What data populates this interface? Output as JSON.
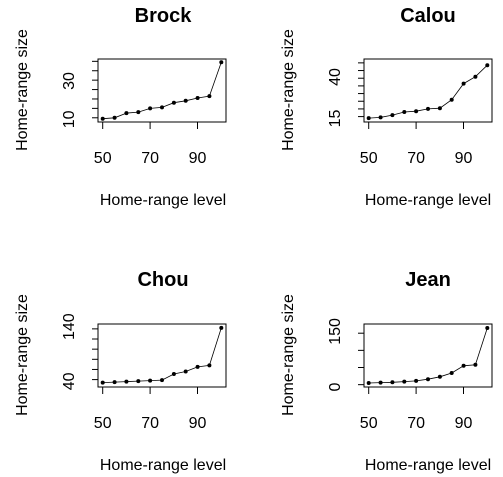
{
  "chart_data": [
    {
      "type": "line",
      "title": "Brock",
      "xlabel": "Home-range level",
      "ylabel": "Home-range size",
      "xlim": [
        50,
        100
      ],
      "ylim": [
        9,
        40
      ],
      "xticks": [
        "50",
        "70",
        "90"
      ],
      "yticks": [
        "10",
        "30"
      ],
      "yminor": [
        10,
        15,
        20,
        25,
        30,
        35,
        40
      ],
      "x": [
        50,
        55,
        60,
        65,
        70,
        75,
        80,
        85,
        90,
        95,
        100
      ],
      "values": [
        9.5,
        10,
        12.5,
        13,
        15,
        15.5,
        18,
        19,
        20.5,
        21.5,
        39.5
      ],
      "grid": false
    },
    {
      "type": "line",
      "title": "Calou",
      "xlabel": "Home-range level",
      "ylabel": "Home-range size",
      "xlim": [
        50,
        100
      ],
      "ylim": [
        13,
        51
      ],
      "xticks": [
        "50",
        "70",
        "90"
      ],
      "yticks": [
        "15",
        "40"
      ],
      "yminor": [
        15,
        20,
        25,
        30,
        35,
        40,
        45,
        50
      ],
      "x": [
        50,
        55,
        60,
        65,
        70,
        75,
        80,
        85,
        90,
        95,
        100
      ],
      "values": [
        14,
        14.5,
        16,
        18,
        18.5,
        20,
        20.5,
        26,
        36.5,
        41,
        48.5
      ],
      "grid": false
    },
    {
      "type": "line",
      "title": "Chou",
      "xlabel": "Home-range level",
      "ylabel": "Home-range size",
      "xlim": [
        50,
        100
      ],
      "ylim": [
        30,
        145
      ],
      "xticks": [
        "50",
        "70",
        "90"
      ],
      "yticks": [
        "40",
        "140"
      ],
      "yminor": [
        40,
        60,
        80,
        100,
        120,
        140
      ],
      "x": [
        50,
        55,
        60,
        65,
        70,
        75,
        80,
        85,
        90,
        95,
        100
      ],
      "values": [
        34,
        35,
        36,
        37,
        38,
        39,
        51,
        56,
        65,
        68,
        142
      ],
      "grid": false
    },
    {
      "type": "line",
      "title": "Jean",
      "xlabel": "Home-range level",
      "ylabel": "Home-range size",
      "xlim": [
        50,
        100
      ],
      "ylim": [
        0,
        170
      ],
      "xticks": [
        "50",
        "70",
        "90"
      ],
      "yticks": [
        "0",
        "150"
      ],
      "yminor": [
        0,
        50,
        100,
        150
      ],
      "x": [
        50,
        55,
        60,
        65,
        70,
        75,
        80,
        85,
        90,
        95,
        100
      ],
      "values": [
        5,
        6,
        7,
        9,
        11,
        16,
        23,
        34,
        55,
        58,
        165
      ],
      "grid": false
    }
  ]
}
